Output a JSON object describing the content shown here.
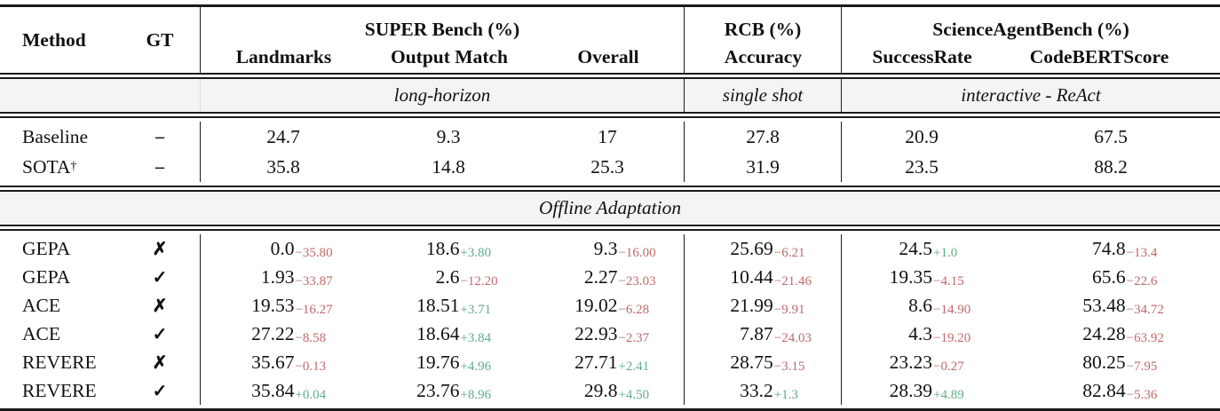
{
  "table": {
    "header": {
      "method": "Method",
      "gt": "GT",
      "groups": [
        {
          "label": "SUPER Bench (%)",
          "subs": [
            "Landmarks",
            "Output Match",
            "Overall"
          ]
        },
        {
          "label": "RCB (%)",
          "subs": [
            "Accuracy"
          ]
        },
        {
          "label": "ScienceAgentBench (%)",
          "subs": [
            "SuccessRate",
            "CodeBERTScore"
          ]
        }
      ]
    },
    "mode_band": {
      "super_bench": "long-horizon",
      "rcb": "single shot",
      "science_agent_bench": "interactive - ReAct"
    },
    "section_band": "Offline Adaptation",
    "reference_rows": [
      {
        "method": "Baseline",
        "sup": "",
        "gt": "–",
        "values": [
          "24.7",
          "9.3",
          "17",
          "27.8",
          "20.9",
          "67.5"
        ]
      },
      {
        "method": "SOTA",
        "sup": "†",
        "gt": "–",
        "values": [
          "35.8",
          "14.8",
          "25.3",
          "31.9",
          "23.5",
          "88.2"
        ]
      }
    ],
    "adaptation_rows": [
      {
        "method": "GEPA",
        "gt": "✗",
        "values": [
          {
            "v": "0.0",
            "d": "−35.80"
          },
          {
            "v": "18.6",
            "d": "+3.80"
          },
          {
            "v": "9.3",
            "d": "−16.00"
          },
          {
            "v": "25.69",
            "d": "−6.21"
          },
          {
            "v": "24.5",
            "d": "+1.0"
          },
          {
            "v": "74.8",
            "d": "−13.4"
          }
        ]
      },
      {
        "method": "GEPA",
        "gt": "✓",
        "values": [
          {
            "v": "1.93",
            "d": "−33.87"
          },
          {
            "v": "2.6",
            "d": "−12.20"
          },
          {
            "v": "2.27",
            "d": "−23.03"
          },
          {
            "v": "10.44",
            "d": "−21.46"
          },
          {
            "v": "19.35",
            "d": "−4.15"
          },
          {
            "v": "65.6",
            "d": "−22.6"
          }
        ]
      },
      {
        "method": "ACE",
        "gt": "✗",
        "values": [
          {
            "v": "19.53",
            "d": "−16.27"
          },
          {
            "v": "18.51",
            "d": "+3.71"
          },
          {
            "v": "19.02",
            "d": "−6.28"
          },
          {
            "v": "21.99",
            "d": "−9.91"
          },
          {
            "v": "8.6",
            "d": "−14.90"
          },
          {
            "v": "53.48",
            "d": "−34.72"
          }
        ]
      },
      {
        "method": "ACE",
        "gt": "✓",
        "values": [
          {
            "v": "27.22",
            "d": "−8.58"
          },
          {
            "v": "18.64",
            "d": "+3.84"
          },
          {
            "v": "22.93",
            "d": "−2.37"
          },
          {
            "v": "7.87",
            "d": "−24.03"
          },
          {
            "v": "4.3",
            "d": "−19.20"
          },
          {
            "v": "24.28",
            "d": "−63.92"
          }
        ]
      },
      {
        "method": "REVERE",
        "gt": "✗",
        "values": [
          {
            "v": "35.67",
            "d": "−0.13"
          },
          {
            "v": "19.76",
            "d": "+4.96"
          },
          {
            "v": "27.71",
            "d": "+2.41"
          },
          {
            "v": "28.75",
            "d": "−3.15"
          },
          {
            "v": "23.23",
            "d": "−0.27"
          },
          {
            "v": "80.25",
            "d": "−7.95"
          }
        ]
      },
      {
        "method": "REVERE",
        "gt": "✓",
        "values": [
          {
            "v": "35.84",
            "d": "+0.04"
          },
          {
            "v": "23.76",
            "d": "+8.96"
          },
          {
            "v": "29.8",
            "d": "+4.50"
          },
          {
            "v": "33.2",
            "d": "+1.3"
          },
          {
            "v": "28.39",
            "d": "+4.89"
          },
          {
            "v": "82.84",
            "d": "−5.36"
          }
        ]
      }
    ],
    "colors": {
      "positive": "#5fae85",
      "negative": "#bf696b",
      "band_bg": "#f4f4f4",
      "rule": "#1a1a1a"
    }
  }
}
